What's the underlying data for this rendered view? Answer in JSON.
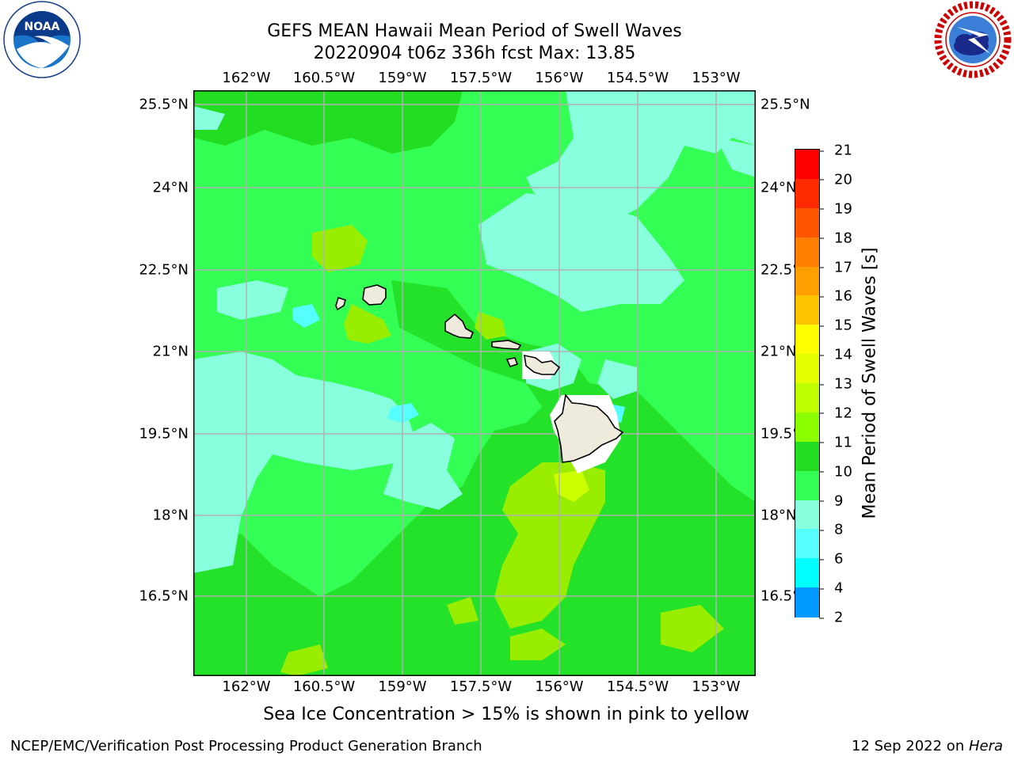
{
  "title": {
    "line1": "GEFS MEAN Hawaii Mean Period of Swell Waves",
    "line2": "20220904 t06z 336h fcst   Max: 13.85"
  },
  "axes": {
    "lon_labels": [
      "162°W",
      "160.5°W",
      "159°W",
      "157.5°W",
      "156°W",
      "154.5°W",
      "153°W"
    ],
    "lat_labels": [
      "25.5°N",
      "24°N",
      "22.5°N",
      "21°N",
      "19.5°N",
      "18°N",
      "16.5°N"
    ],
    "lon_range": [
      -163,
      -152.7
    ],
    "lat_range": [
      15,
      25.8
    ],
    "grid": true
  },
  "colorbar": {
    "label": "Mean Period of Swell Waves [s]",
    "ticks": [
      "21",
      "20",
      "19",
      "18",
      "17",
      "16",
      "15",
      "14",
      "13",
      "12",
      "11",
      "10",
      "9",
      "8",
      "6",
      "4",
      "2"
    ],
    "colors": [
      "#ff0000",
      "#ff2a00",
      "#ff5500",
      "#ff7f00",
      "#ffa000",
      "#ffc400",
      "#ffff00",
      "#e5ff00",
      "#bfff00",
      "#8cff00",
      "#22dd22",
      "#33ff55",
      "#88ffdd",
      "#55ffff",
      "#00ffff",
      "#0099ff",
      "#0055ff",
      "#0000ff"
    ]
  },
  "chart_data": {
    "type": "heatmap",
    "title": "GEFS MEAN Hawaii Mean Period of Swell Waves",
    "subtitle": "20220904 t06z 336h fcst   Max: 13.85",
    "variable": "Mean Period of Swell Waves [s]",
    "max": 13.85,
    "value_range_shown": [
      9,
      13.85
    ],
    "dominant_band": "10-11",
    "region": "Hawaii"
  },
  "caption": "Sea Ice Concentration > 15% is shown in pink to yellow",
  "footer": {
    "left": "NCEP/EMC/Verification Post Processing Product Generation Branch",
    "right_prefix": "12 Sep 2022 on ",
    "right_machine": "Hera"
  },
  "logos": {
    "noaa_text": "NOAA",
    "noaa_ring": "NATIONAL OCEANIC AND ATMOSPHERIC ADMINISTRATION · U.S. DEPARTMENT OF COMMERCE",
    "nws_ring": "NATIONAL WEATHER SERVICE"
  }
}
